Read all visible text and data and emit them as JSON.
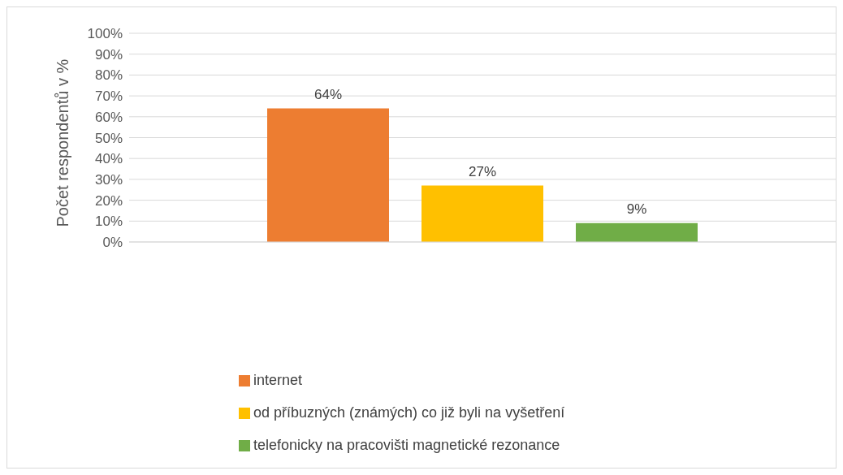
{
  "chart_data": {
    "type": "bar",
    "ylabel": "Počet respondentů v %",
    "categories": [
      null
    ],
    "series": [
      {
        "name": "internet",
        "color": "#ed7d31",
        "values": [
          64
        ],
        "value_labels": [
          "64%"
        ]
      },
      {
        "name": "od příbuzných (známých) co již byli na vyšetření",
        "color": "#ffc000",
        "values": [
          27
        ],
        "value_labels": [
          "27%"
        ]
      },
      {
        "name": "telefonicky na pracovišti magnetické rezonance",
        "color": "#70ad47",
        "values": [
          9
        ],
        "value_labels": [
          "9%"
        ]
      }
    ],
    "ylim": [
      0,
      100
    ],
    "yticks": [
      {
        "value": 0,
        "label": "0%"
      },
      {
        "value": 10,
        "label": "10%"
      },
      {
        "value": 20,
        "label": "20%"
      },
      {
        "value": 30,
        "label": "30%"
      },
      {
        "value": 40,
        "label": "40%"
      },
      {
        "value": 50,
        "label": "50%"
      },
      {
        "value": 60,
        "label": "60%"
      },
      {
        "value": 70,
        "label": "70%"
      },
      {
        "value": 80,
        "label": "80%"
      },
      {
        "value": 90,
        "label": "90%"
      },
      {
        "value": 100,
        "label": "100%"
      }
    ],
    "grid": "y",
    "legend": "bottom"
  }
}
